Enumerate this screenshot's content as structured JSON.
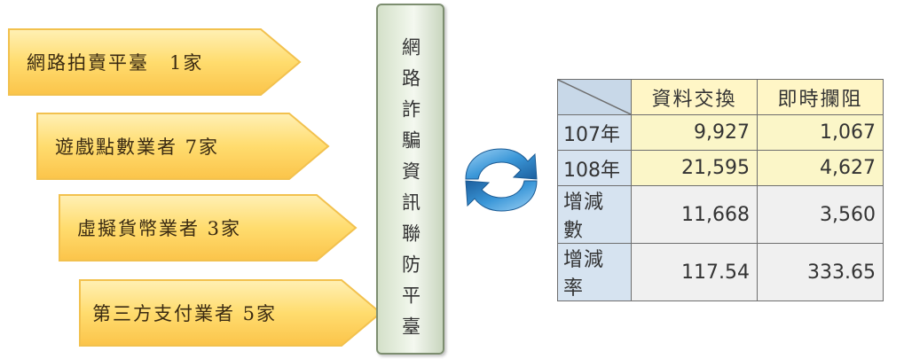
{
  "companies": [
    {
      "label": "網路拍賣平臺　1家"
    },
    {
      "label": "遊戲點數業者 7家"
    },
    {
      "label": "虛擬貨幣業者 3家"
    },
    {
      "label": "第三方支付業者 5家"
    }
  ],
  "platform": {
    "title": "網路詐騙資訊聯防平臺"
  },
  "table": {
    "columns": [
      "資料交換",
      "即時攔阻"
    ],
    "rows": [
      {
        "label": "107年",
        "values": [
          "9,927",
          "1,067"
        ]
      },
      {
        "label": "108年",
        "values": [
          "21,595",
          "4,627"
        ]
      },
      {
        "label": "增減數",
        "values": [
          "11,668",
          "3,560"
        ]
      },
      {
        "label": "增減率",
        "values": [
          "117.54",
          "333.65"
        ]
      }
    ]
  },
  "colors": {
    "arrow_fill": "#ffd35c",
    "arrow_edge": "#f5a623",
    "platform_fill": "#e3ecdb",
    "table_header": "#fff6c6",
    "table_rowhead": "#d6e3f0",
    "sync_icon": "#2e86c9"
  },
  "icons": {
    "exchange": "sync-arrows-icon"
  }
}
